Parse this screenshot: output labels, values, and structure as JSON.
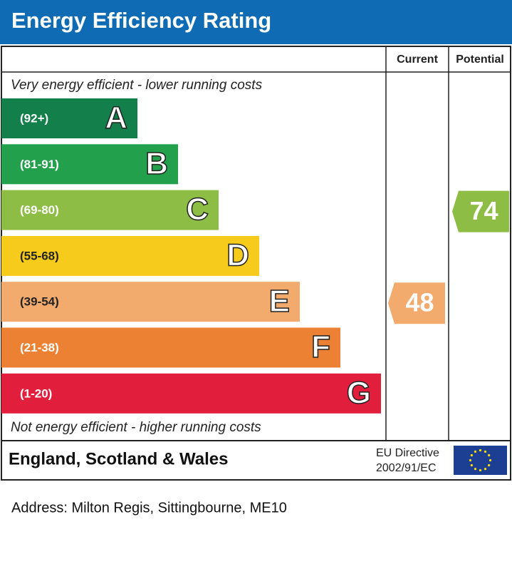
{
  "header": {
    "title": "Energy Efficiency Rating"
  },
  "columns": {
    "current": "Current",
    "potential": "Potential"
  },
  "top_note": "Very energy efficient - lower running costs",
  "bottom_note": "Not energy efficient - higher running costs",
  "bands": [
    {
      "range": "(92+)",
      "letter": "A",
      "color": "#137f4b"
    },
    {
      "range": "(81-91)",
      "letter": "B",
      "color": "#22a04c"
    },
    {
      "range": "(69-80)",
      "letter": "C",
      "color": "#8dbd45"
    },
    {
      "range": "(55-68)",
      "letter": "D",
      "color": "#f6cb1b"
    },
    {
      "range": "(39-54)",
      "letter": "E",
      "color": "#f2aa6d"
    },
    {
      "range": "(21-38)",
      "letter": "F",
      "color": "#ec8133"
    },
    {
      "range": "(1-20)",
      "letter": "G",
      "color": "#e21e3d"
    }
  ],
  "current": 48,
  "potential": 74,
  "footer": {
    "region": "England, Scotland & Wales",
    "directive": [
      "EU Directive",
      "2002/91/EC"
    ]
  },
  "address": "Address: Milton Regis, Sittingbourne, ME10"
}
